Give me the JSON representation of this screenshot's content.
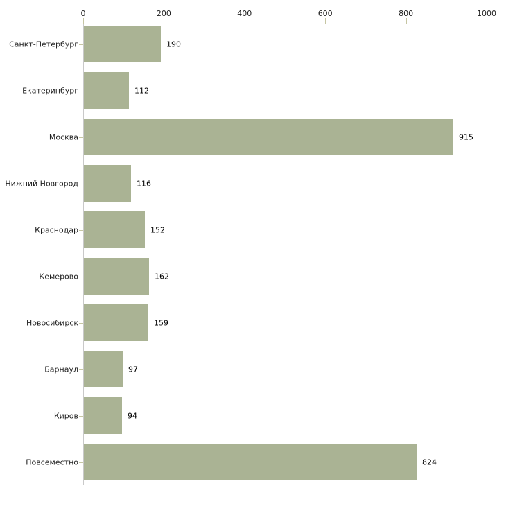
{
  "chart_data": {
    "type": "bar",
    "orientation": "horizontal",
    "title": "",
    "xlabel": "",
    "ylabel": "",
    "categories": [
      "Санкт-Петербург",
      "Екатеринбург",
      "Москва",
      "Нижний Новгород",
      "Краснодар",
      "Кемерово",
      "Новосибирск",
      "Барнаул",
      "Киров",
      "Повсеместно"
    ],
    "values": [
      190,
      112,
      915,
      116,
      152,
      162,
      159,
      97,
      94,
      824
    ],
    "value_labels": [
      "190",
      "112",
      "915",
      "116",
      "152",
      "162",
      "159",
      "97",
      "94",
      "824"
    ],
    "x_ticks": [
      0,
      200,
      400,
      600,
      800,
      1000
    ],
    "x_tick_labels": [
      "0",
      "200",
      "400",
      "600",
      "800",
      "1000"
    ],
    "xlim": [
      0,
      1000
    ],
    "grid": false,
    "legend": null,
    "axis_position": "top",
    "colors": {
      "bar": "#aab394",
      "axis_line": "#c9c9c9",
      "tick_mark": "#c6c6a3",
      "text": "#1f1f1f",
      "value_text": "#000000",
      "background": "#ffffff"
    }
  }
}
